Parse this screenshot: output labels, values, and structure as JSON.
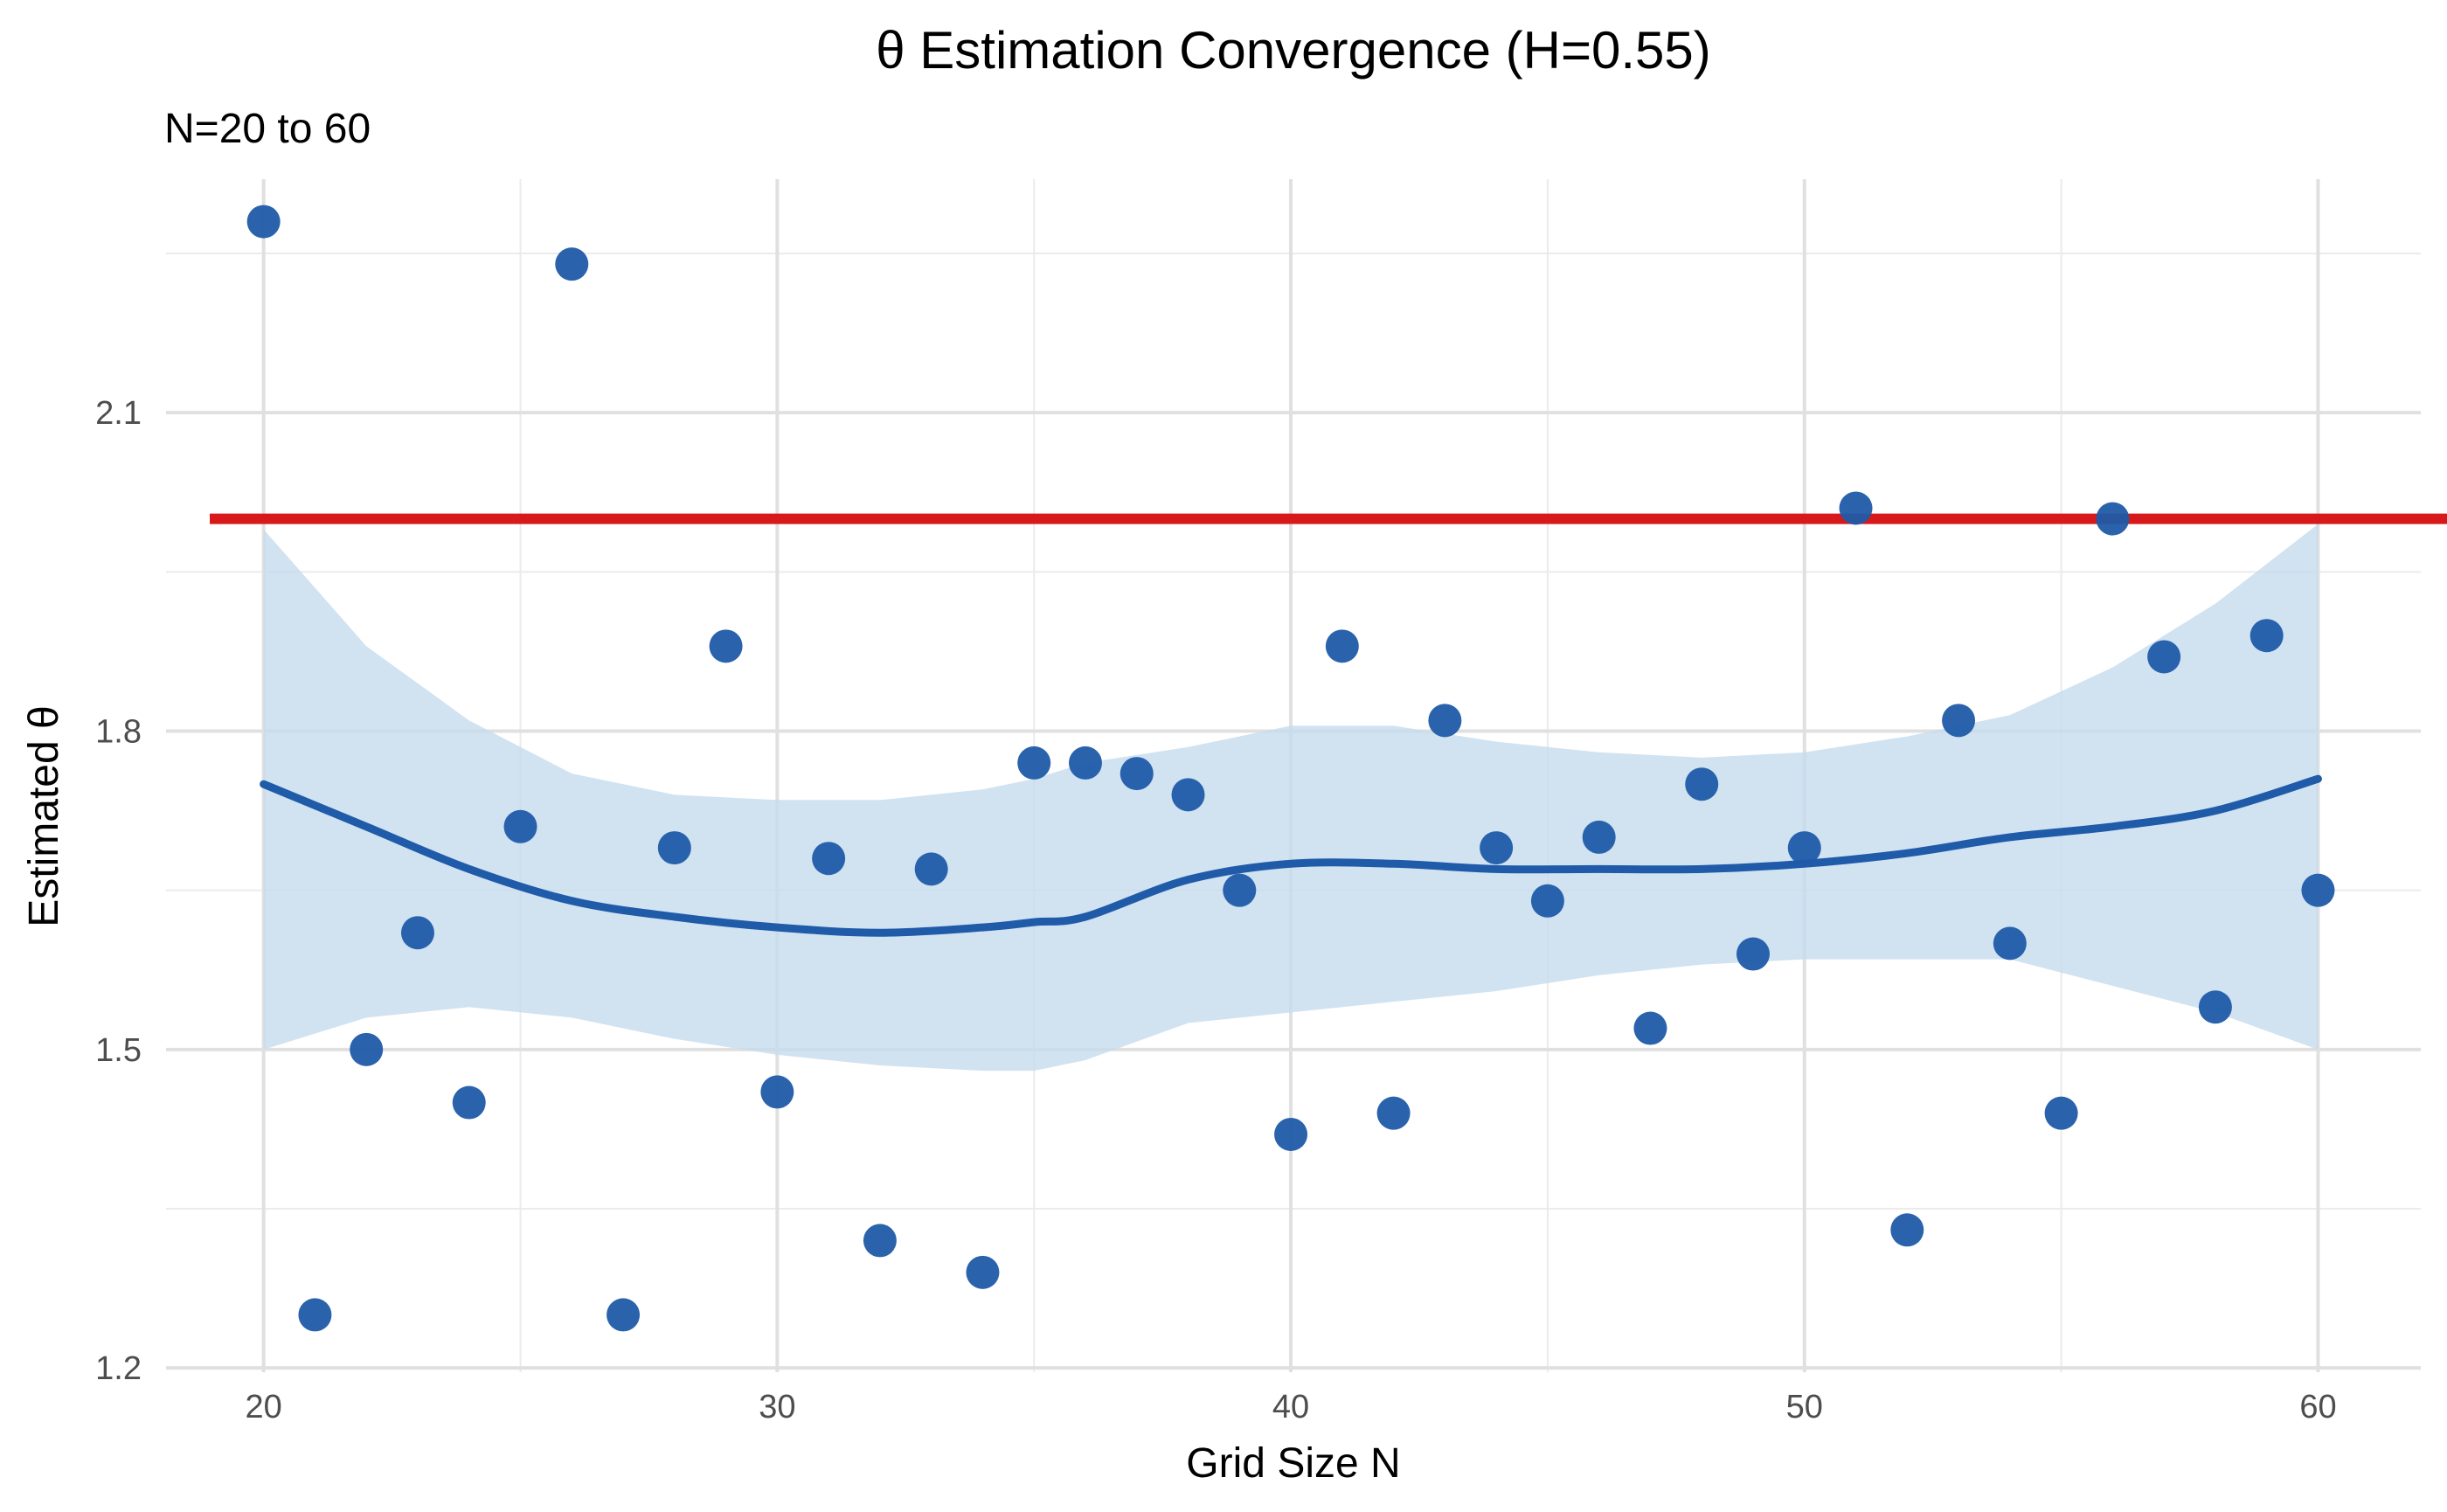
{
  "chart_data": {
    "type": "scatter",
    "title": "θ Estimation Convergence (H=0.55)",
    "subtitle": "N=20 to 60",
    "xlabel": "Grid Size N",
    "ylabel": "Estimated θ",
    "xlim": [
      18.1,
      62.0
    ],
    "ylim": [
      1.196,
      2.32
    ],
    "x_ticks": [
      20,
      30,
      40,
      50,
      60
    ],
    "x_tick_labels": [
      "20",
      "30",
      "40",
      "50",
      "60"
    ],
    "y_ticks": [
      1.2,
      1.5,
      1.8,
      2.1
    ],
    "y_tick_labels": [
      "1.2",
      "1.5",
      "1.8",
      "2.1"
    ],
    "x_minor": [
      25,
      35,
      45,
      55
    ],
    "y_minor": [
      1.35,
      1.65,
      1.95,
      2.25
    ],
    "grid": true,
    "reference_line": {
      "y": 2.0,
      "color": "#d7191c"
    },
    "point_color": "#1f5ba8",
    "smooth_color": "#1f5ba8",
    "band_color": "#c6dbed",
    "points": [
      {
        "x": 20,
        "y": 2.28
      },
      {
        "x": 21,
        "y": 1.25
      },
      {
        "x": 22,
        "y": 1.5
      },
      {
        "x": 23,
        "y": 1.61
      },
      {
        "x": 24,
        "y": 1.45
      },
      {
        "x": 25,
        "y": 1.71
      },
      {
        "x": 26,
        "y": 2.24
      },
      {
        "x": 27,
        "y": 1.25
      },
      {
        "x": 28,
        "y": 1.69
      },
      {
        "x": 29,
        "y": 1.88
      },
      {
        "x": 30,
        "y": 1.46
      },
      {
        "x": 31,
        "y": 1.68
      },
      {
        "x": 32,
        "y": 1.32
      },
      {
        "x": 33,
        "y": 1.67
      },
      {
        "x": 34,
        "y": 1.29
      },
      {
        "x": 35,
        "y": 1.77
      },
      {
        "x": 36,
        "y": 1.77
      },
      {
        "x": 37,
        "y": 1.76
      },
      {
        "x": 38,
        "y": 1.74
      },
      {
        "x": 39,
        "y": 1.65
      },
      {
        "x": 40,
        "y": 1.42
      },
      {
        "x": 41,
        "y": 1.88
      },
      {
        "x": 42,
        "y": 1.44
      },
      {
        "x": 43,
        "y": 1.81
      },
      {
        "x": 44,
        "y": 1.69
      },
      {
        "x": 45,
        "y": 1.64
      },
      {
        "x": 46,
        "y": 1.7
      },
      {
        "x": 47,
        "y": 1.52
      },
      {
        "x": 48,
        "y": 1.75
      },
      {
        "x": 49,
        "y": 1.59
      },
      {
        "x": 50,
        "y": 1.69
      },
      {
        "x": 51,
        "y": 2.01
      },
      {
        "x": 52,
        "y": 1.33
      },
      {
        "x": 53,
        "y": 1.81
      },
      {
        "x": 54,
        "y": 1.6
      },
      {
        "x": 55,
        "y": 1.44
      },
      {
        "x": 56,
        "y": 2.0
      },
      {
        "x": 57,
        "y": 1.87
      },
      {
        "x": 58,
        "y": 1.54
      },
      {
        "x": 59,
        "y": 1.89
      },
      {
        "x": 60,
        "y": 1.65
      }
    ],
    "smooth": [
      {
        "x": 20,
        "y": 1.75,
        "lo": 1.5,
        "hi": 1.99
      },
      {
        "x": 22,
        "y": 1.71,
        "lo": 1.53,
        "hi": 1.88
      },
      {
        "x": 24,
        "y": 1.67,
        "lo": 1.54,
        "hi": 1.81
      },
      {
        "x": 26,
        "y": 1.64,
        "lo": 1.53,
        "hi": 1.76
      },
      {
        "x": 28,
        "y": 1.625,
        "lo": 1.51,
        "hi": 1.74
      },
      {
        "x": 30,
        "y": 1.615,
        "lo": 1.495,
        "hi": 1.735
      },
      {
        "x": 32,
        "y": 1.61,
        "lo": 1.485,
        "hi": 1.735
      },
      {
        "x": 34,
        "y": 1.615,
        "lo": 1.48,
        "hi": 1.745
      },
      {
        "x": 35,
        "y": 1.62,
        "lo": 1.48,
        "hi": 1.755
      },
      {
        "x": 36,
        "y": 1.625,
        "lo": 1.49,
        "hi": 1.77
      },
      {
        "x": 38,
        "y": 1.66,
        "lo": 1.525,
        "hi": 1.785
      },
      {
        "x": 40,
        "y": 1.675,
        "lo": 1.535,
        "hi": 1.805
      },
      {
        "x": 42,
        "y": 1.675,
        "lo": 1.545,
        "hi": 1.805
      },
      {
        "x": 44,
        "y": 1.67,
        "lo": 1.555,
        "hi": 1.79
      },
      {
        "x": 46,
        "y": 1.67,
        "lo": 1.57,
        "hi": 1.78
      },
      {
        "x": 48,
        "y": 1.67,
        "lo": 1.58,
        "hi": 1.775
      },
      {
        "x": 50,
        "y": 1.675,
        "lo": 1.585,
        "hi": 1.78
      },
      {
        "x": 52,
        "y": 1.685,
        "lo": 1.585,
        "hi": 1.795
      },
      {
        "x": 54,
        "y": 1.7,
        "lo": 1.585,
        "hi": 1.815
      },
      {
        "x": 56,
        "y": 1.71,
        "lo": 1.56,
        "hi": 1.86
      },
      {
        "x": 58,
        "y": 1.725,
        "lo": 1.535,
        "hi": 1.92
      },
      {
        "x": 60,
        "y": 1.755,
        "lo": 1.5,
        "hi": 1.995
      }
    ]
  }
}
